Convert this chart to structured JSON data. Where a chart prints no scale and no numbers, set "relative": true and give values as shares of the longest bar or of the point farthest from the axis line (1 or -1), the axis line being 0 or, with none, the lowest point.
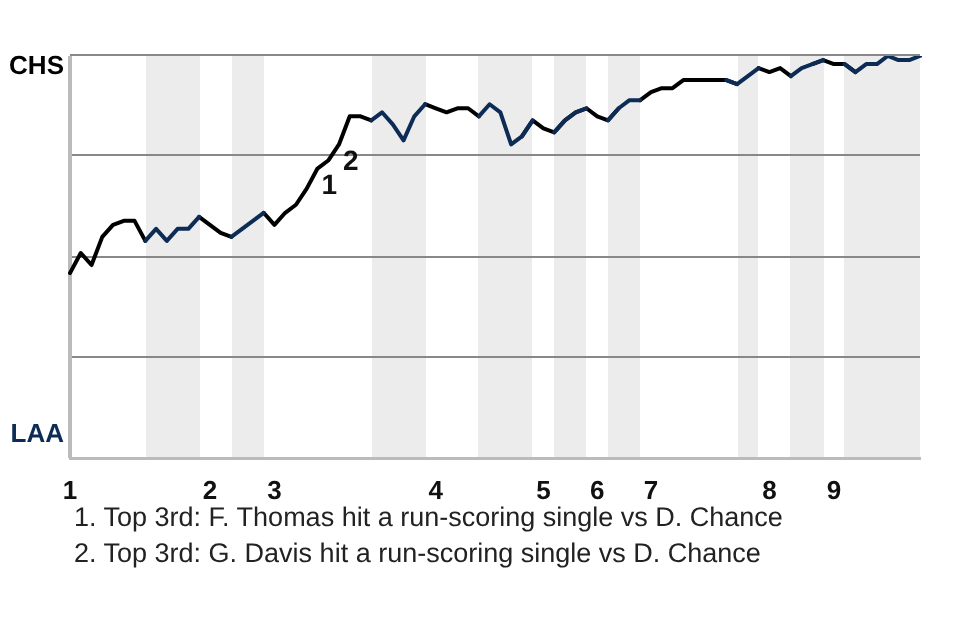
{
  "chart_data": {
    "type": "line",
    "relative": true,
    "categories": [
      "1",
      null,
      null,
      null,
      null,
      null,
      null,
      null,
      null,
      null,
      null,
      null,
      null,
      "2",
      null,
      null,
      null,
      null,
      null,
      "3",
      null,
      null,
      null,
      null,
      null,
      null,
      null,
      null,
      null,
      null,
      null,
      null,
      null,
      null,
      "4",
      null,
      null,
      null,
      null,
      null,
      null,
      null,
      null,
      null,
      "5",
      null,
      null,
      null,
      null,
      "6",
      null,
      null,
      null,
      null,
      "7",
      null,
      null,
      null,
      null,
      null,
      null,
      null,
      null,
      null,
      null,
      "8",
      null,
      null,
      null,
      null,
      null,
      "9",
      null,
      null,
      null,
      null,
      null,
      null,
      null,
      null
    ],
    "series": [
      {
        "color": "#000000",
        "values": [
          0.46,
          0.51,
          0.48,
          0.55,
          0.58,
          0.59,
          0.59,
          0.54,
          null,
          null,
          null,
          null,
          0.6,
          0.58,
          0.56,
          0.55,
          null,
          null,
          0.61,
          0.58,
          0.61,
          0.63,
          0.67,
          0.72,
          0.74,
          0.78,
          0.85,
          0.85,
          0.84,
          null,
          null,
          null,
          null,
          0.88,
          0.87,
          0.86,
          0.87,
          0.87,
          0.85,
          null,
          null,
          null,
          0.8,
          0.84,
          0.82,
          0.81,
          0.84,
          0.86,
          0.87,
          0.85,
          0.84,
          0.87,
          null,
          0.89,
          0.91,
          0.92,
          0.92,
          0.94,
          0.94,
          0.94,
          0.94,
          0.94,
          0.93,
          null,
          0.97,
          0.96,
          0.97,
          0.95,
          null,
          0.98,
          0.99,
          0.98,
          0.98,
          0.96,
          null,
          null,
          null,
          null,
          null,
          null
        ]
      },
      {
        "color": "#0c2c56",
        "values": [
          null,
          null,
          null,
          null,
          null,
          null,
          null,
          0.54,
          0.57,
          0.54,
          0.57,
          0.57,
          0.6,
          null,
          null,
          0.55,
          0.57,
          0.59,
          0.61,
          null,
          null,
          null,
          null,
          null,
          null,
          null,
          null,
          null,
          0.84,
          0.86,
          0.83,
          0.79,
          0.85,
          0.88,
          null,
          null,
          null,
          null,
          0.85,
          0.88,
          0.86,
          0.78,
          0.8,
          0.84,
          null,
          0.81,
          0.84,
          0.86,
          0.87,
          null,
          0.84,
          0.87,
          0.89,
          0.89,
          null,
          null,
          null,
          null,
          null,
          null,
          null,
          0.94,
          0.93,
          0.95,
          0.97,
          null,
          null,
          0.95,
          0.97,
          0.98,
          0.99,
          null,
          0.98,
          0.96,
          0.98,
          0.98,
          1.0,
          0.99,
          0.99,
          1.0
        ]
      }
    ],
    "legend": false,
    "marker": "none",
    "line_style": "solid",
    "annotations": [
      "CHS",
      "LAA",
      {
        "text": "1",
        "y": 0.72
      },
      {
        "text": "2",
        "y": 0.78
      },
      "1. Top 3rd: F. Thomas hit a run-scoring single vs D. Chance",
      "2. Top 3rd: G. Davis hit a run-scoring single vs D. Chance"
    ]
  }
}
